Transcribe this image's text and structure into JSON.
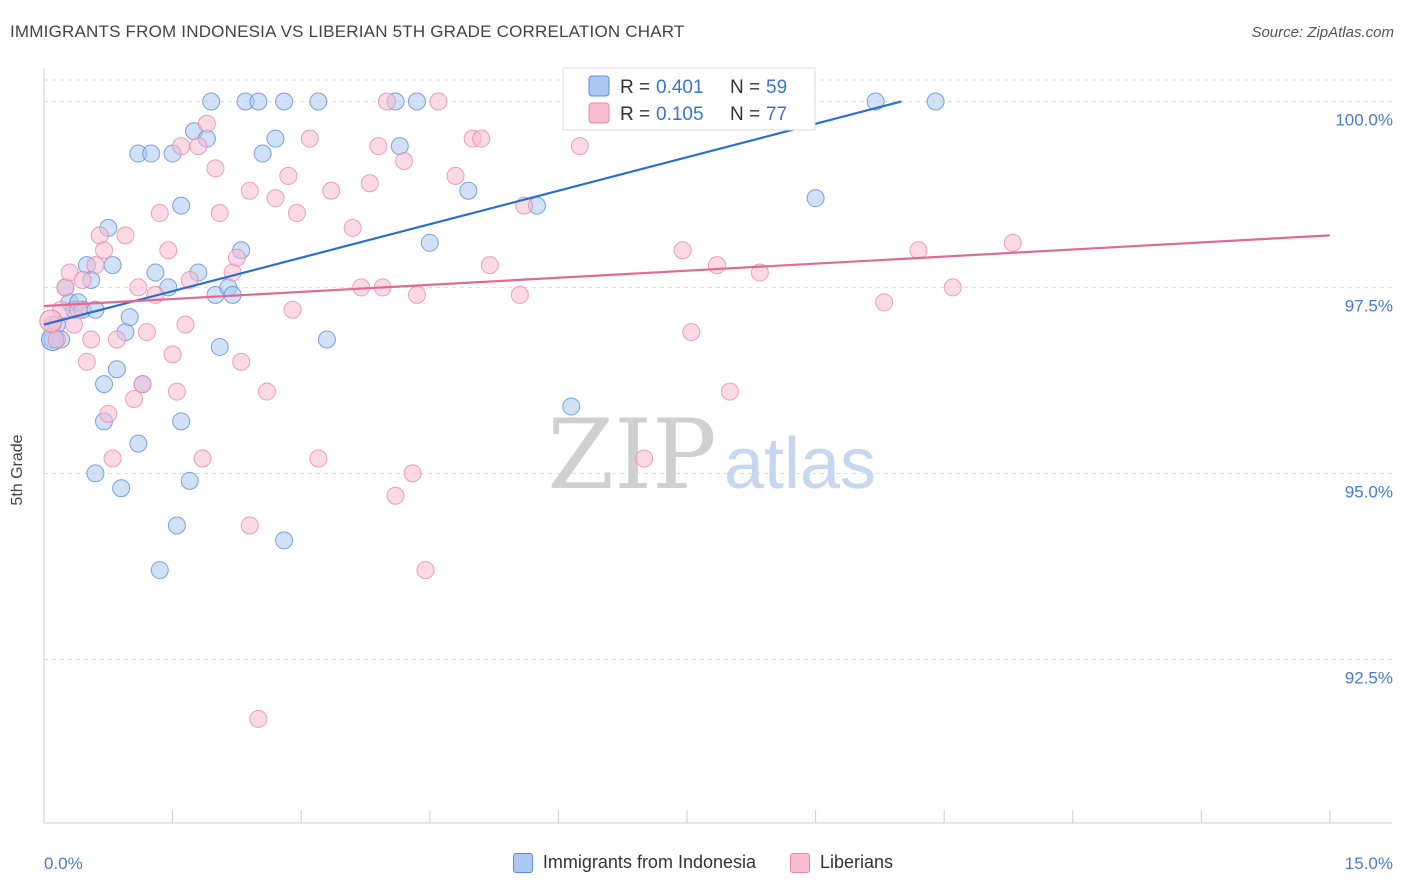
{
  "header": {
    "title": "IMMIGRANTS FROM INDONESIA VS LIBERIAN 5TH GRADE CORRELATION CHART",
    "source": "Source: ZipAtlas.com"
  },
  "watermark": {
    "zip": "ZIP",
    "atlas": "atlas"
  },
  "legend_box": {
    "rows": [
      {
        "r_label": "R = ",
        "r_value": "0.401",
        "n_label": "N = ",
        "n_value": "59"
      },
      {
        "r_label": "R = ",
        "r_value": "0.105",
        "n_label": "N = ",
        "n_value": "77"
      }
    ]
  },
  "bottom_legend": {
    "items": [
      {
        "label": "Immigrants from Indonesia"
      },
      {
        "label": "Liberians"
      }
    ]
  },
  "colors": {
    "blue_fill": "#a9c8f2",
    "blue_stroke": "#5b8fd6",
    "blue_line": "#2d6fcc",
    "pink_fill": "#f7bcd0",
    "pink_stroke": "#e98aa9",
    "pink_line": "#e06a93",
    "grid": "#dddddd",
    "tick_text": "#4a7cc8"
  },
  "chart_data": {
    "type": "scatter",
    "title": "IMMIGRANTS FROM INDONESIA VS LIBERIAN 5TH GRADE CORRELATION CHART",
    "xlabel": "",
    "ylabel": "5th Grade",
    "xlim": [
      0,
      15
    ],
    "ylim": [
      90.3,
      100.45
    ],
    "x_tick_labels": [
      "0.0%",
      "15.0%"
    ],
    "y_ticks": [
      92.5,
      95.0,
      97.5,
      100.0
    ],
    "y_tick_labels": [
      "92.5%",
      "95.0%",
      "97.5%",
      "100.0%"
    ],
    "grid": true,
    "legend": "top-center",
    "series": [
      {
        "name": "Immigrants from Indonesia",
        "r": 0.401,
        "n": 59,
        "trend": [
          [
            0.0,
            97.0
          ],
          [
            10.0,
            100.0
          ]
        ],
        "points": [
          [
            0.1,
            96.8
          ],
          [
            0.15,
            97.0
          ],
          [
            0.2,
            96.8
          ],
          [
            0.25,
            97.5
          ],
          [
            0.3,
            97.3
          ],
          [
            0.35,
            97.2
          ],
          [
            0.4,
            97.3
          ],
          [
            0.45,
            97.2
          ],
          [
            0.5,
            97.8
          ],
          [
            0.55,
            97.6
          ],
          [
            0.6,
            97.2
          ],
          [
            0.6,
            95.0
          ],
          [
            0.7,
            96.2
          ],
          [
            0.7,
            95.7
          ],
          [
            0.75,
            98.3
          ],
          [
            0.8,
            97.8
          ],
          [
            0.85,
            96.4
          ],
          [
            0.9,
            94.8
          ],
          [
            0.95,
            96.9
          ],
          [
            1.0,
            97.1
          ],
          [
            1.1,
            95.4
          ],
          [
            1.15,
            96.2
          ],
          [
            1.1,
            99.3
          ],
          [
            1.25,
            99.3
          ],
          [
            1.3,
            97.7
          ],
          [
            1.35,
            93.7
          ],
          [
            1.45,
            97.5
          ],
          [
            1.5,
            99.3
          ],
          [
            1.55,
            94.3
          ],
          [
            1.6,
            98.6
          ],
          [
            1.6,
            95.7
          ],
          [
            1.7,
            94.9
          ],
          [
            1.75,
            99.6
          ],
          [
            1.8,
            97.7
          ],
          [
            1.9,
            99.5
          ],
          [
            1.95,
            100.0
          ],
          [
            2.0,
            97.4
          ],
          [
            2.05,
            96.7
          ],
          [
            2.15,
            97.5
          ],
          [
            2.2,
            97.4
          ],
          [
            2.3,
            98.0
          ],
          [
            2.35,
            100.0
          ],
          [
            2.5,
            100.0
          ],
          [
            2.55,
            99.3
          ],
          [
            2.7,
            99.5
          ],
          [
            2.8,
            94.1
          ],
          [
            2.8,
            100.0
          ],
          [
            3.3,
            96.8
          ],
          [
            3.2,
            100.0
          ],
          [
            4.1,
            100.0
          ],
          [
            4.15,
            99.4
          ],
          [
            4.35,
            100.0
          ],
          [
            4.5,
            98.1
          ],
          [
            4.95,
            98.8
          ],
          [
            5.75,
            98.6
          ],
          [
            6.15,
            95.9
          ],
          [
            9.0,
            98.7
          ],
          [
            9.7,
            100.0
          ],
          [
            10.4,
            100.0
          ]
        ]
      },
      {
        "name": "Liberians",
        "r": 0.105,
        "n": 77,
        "trend": [
          [
            0.0,
            97.25
          ],
          [
            15.0,
            98.2
          ]
        ],
        "points": [
          [
            0.1,
            97.0
          ],
          [
            0.15,
            96.8
          ],
          [
            0.2,
            97.2
          ],
          [
            0.25,
            97.5
          ],
          [
            0.3,
            97.7
          ],
          [
            0.35,
            97.0
          ],
          [
            0.4,
            97.2
          ],
          [
            0.45,
            97.6
          ],
          [
            0.5,
            96.5
          ],
          [
            0.55,
            96.8
          ],
          [
            0.6,
            97.8
          ],
          [
            0.65,
            98.2
          ],
          [
            0.7,
            98.0
          ],
          [
            0.75,
            95.8
          ],
          [
            0.8,
            95.2
          ],
          [
            0.85,
            96.8
          ],
          [
            0.95,
            98.2
          ],
          [
            1.05,
            96.0
          ],
          [
            1.1,
            97.5
          ],
          [
            1.15,
            96.2
          ],
          [
            1.2,
            96.9
          ],
          [
            1.3,
            97.4
          ],
          [
            1.35,
            98.5
          ],
          [
            1.45,
            98.0
          ],
          [
            1.5,
            96.6
          ],
          [
            1.55,
            96.1
          ],
          [
            1.6,
            99.4
          ],
          [
            1.65,
            97.0
          ],
          [
            1.7,
            97.6
          ],
          [
            1.8,
            99.4
          ],
          [
            1.85,
            95.2
          ],
          [
            1.9,
            99.7
          ],
          [
            2.0,
            99.1
          ],
          [
            2.05,
            98.5
          ],
          [
            2.2,
            97.7
          ],
          [
            2.25,
            97.9
          ],
          [
            2.3,
            96.5
          ],
          [
            2.4,
            98.8
          ],
          [
            2.4,
            94.3
          ],
          [
            2.5,
            91.7
          ],
          [
            2.6,
            96.1
          ],
          [
            2.7,
            98.7
          ],
          [
            2.85,
            99.0
          ],
          [
            2.9,
            97.2
          ],
          [
            2.95,
            98.5
          ],
          [
            3.1,
            99.5
          ],
          [
            3.2,
            95.2
          ],
          [
            3.35,
            98.8
          ],
          [
            3.6,
            98.3
          ],
          [
            3.7,
            97.5
          ],
          [
            3.8,
            98.9
          ],
          [
            3.9,
            99.4
          ],
          [
            3.95,
            97.5
          ],
          [
            4.0,
            100.0
          ],
          [
            4.1,
            94.7
          ],
          [
            4.2,
            99.2
          ],
          [
            4.3,
            95.0
          ],
          [
            4.35,
            97.4
          ],
          [
            4.45,
            93.7
          ],
          [
            4.6,
            100.0
          ],
          [
            4.8,
            99.0
          ],
          [
            5.0,
            99.5
          ],
          [
            5.1,
            99.5
          ],
          [
            5.2,
            97.8
          ],
          [
            5.55,
            97.4
          ],
          [
            5.6,
            98.6
          ],
          [
            6.25,
            99.4
          ],
          [
            7.0,
            95.2
          ],
          [
            7.45,
            98.0
          ],
          [
            7.55,
            96.9
          ],
          [
            7.85,
            97.8
          ],
          [
            8.0,
            96.1
          ],
          [
            8.35,
            97.7
          ],
          [
            9.8,
            97.3
          ],
          [
            10.2,
            98.0
          ],
          [
            10.6,
            97.5
          ],
          [
            11.3,
            98.1
          ]
        ]
      }
    ]
  }
}
